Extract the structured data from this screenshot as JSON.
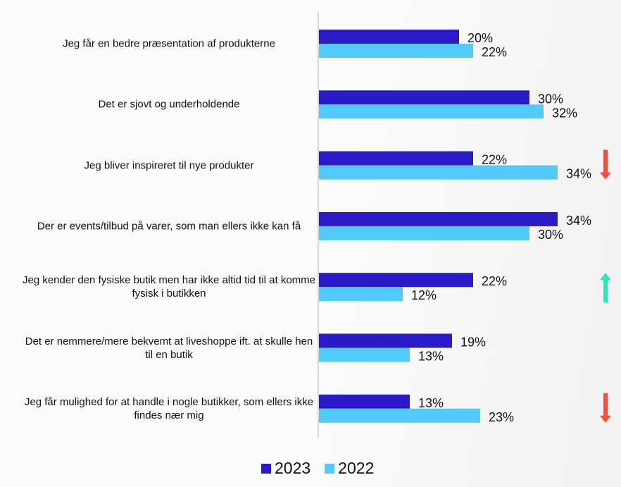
{
  "chart_data": {
    "type": "bar",
    "orientation": "horizontal",
    "title": "",
    "xlabel": "",
    "ylabel": "",
    "xlim": [
      0,
      40
    ],
    "grid": false,
    "legend_position": "bottom-center",
    "value_suffix": "%",
    "categories": [
      "Jeg får en bedre præsentation af produkterne",
      "Det er sjovt og underholdende",
      "Jeg bliver inspireret til nye produkter",
      "Der er events/tilbud på varer, som man ellers ikke kan få",
      "Jeg kender den fysiske butik men har ikke altid tid til at komme fysisk i butikken",
      "Det er nemmere/mere bekvemt at liveshoppe ift. at skulle hen til en butik",
      "Jeg får mulighed for at handle i nogle butikker, som ellers ikke findes nær mig"
    ],
    "series": [
      {
        "name": "2023",
        "color": "#2b1ac8",
        "values": [
          20,
          30,
          22,
          34,
          22,
          19,
          13
        ]
      },
      {
        "name": "2022",
        "color": "#51c9f9",
        "values": [
          22,
          32,
          34,
          30,
          12,
          13,
          23
        ]
      }
    ],
    "annotations": [
      {
        "category_index": 2,
        "type": "arrow-down",
        "color": "#f2503c"
      },
      {
        "category_index": 4,
        "type": "arrow-up",
        "color": "#2de6b9"
      },
      {
        "category_index": 6,
        "type": "arrow-down",
        "color": "#f2503c"
      }
    ]
  },
  "labels": [
    "Jeg får en bedre præsentation af produkterne",
    "Det er sjovt og underholdende",
    "Jeg bliver inspireret til nye produkter",
    "Der er events/tilbud på varer, som man ellers ikke kan få",
    "Jeg kender den fysiske butik men har ikke altid tid til at komme fysisk i butikken",
    "Det er nemmere/mere bekvemt at liveshoppe ift. at skulle hen til en butik",
    "Jeg får mulighed for at handle i nogle butikker, som ellers ikke findes nær mig"
  ],
  "legend": [
    {
      "label": "2023",
      "color": "#2b1ac8"
    },
    {
      "label": "2022",
      "color": "#51c9f9"
    }
  ]
}
